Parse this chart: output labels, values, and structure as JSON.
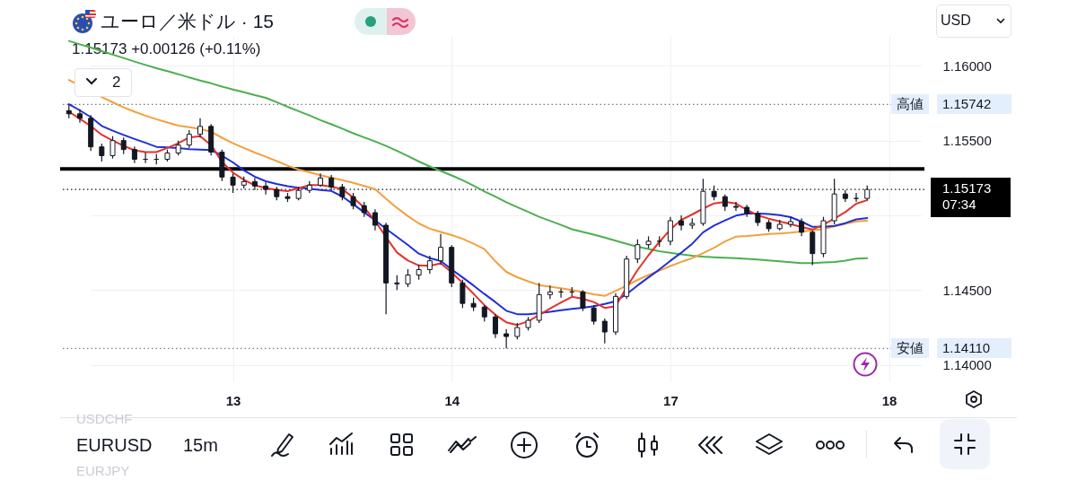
{
  "chart_data": {
    "type": "candlestick",
    "title": "ユーロ／米ドル · 15",
    "subtitle": "1.15173 +0.00126 (+0.11%)",
    "annotations": [
      "2",
      "USD",
      "EURUSD",
      "15m",
      "USDCHF",
      "EURJPY",
      "07:34",
      {
        "text": "高値",
        "y": 1.15742
      },
      {
        "text": "安値",
        "y": 1.1411
      }
    ],
    "color": "#131722",
    "grid": true,
    "categories": [
      null,
      null,
      null,
      null,
      null,
      null,
      null,
      null,
      null,
      null,
      null,
      null,
      null,
      null,
      null,
      "13",
      null,
      null,
      null,
      null,
      null,
      null,
      null,
      null,
      null,
      null,
      null,
      null,
      null,
      null,
      null,
      null,
      null,
      null,
      null,
      "14",
      null,
      null,
      null,
      null,
      null,
      null,
      null,
      null,
      null,
      null,
      null,
      null,
      null,
      null,
      null,
      null,
      null,
      null,
      null,
      "17",
      null,
      null,
      null,
      null,
      null,
      null,
      null,
      null,
      null,
      null,
      null,
      null,
      null,
      null,
      null,
      null,
      null,
      null,
      null,
      "18"
    ],
    "ylim": [
      1.1389,
      1.162
    ],
    "yticks": [
      {
        "value": 1.14,
        "label": "1.14000"
      },
      {
        "value": 1.145,
        "label": "1.14500"
      },
      {
        "value": 1.15,
        "label": null
      },
      {
        "value": 1.155,
        "label": "1.15500"
      },
      {
        "value": 1.16,
        "label": "1.16000"
      }
    ],
    "ohlc": [
      [
        1.157,
        1.15742,
        1.1565,
        1.15679
      ],
      [
        1.15679,
        1.1571,
        1.1562,
        1.15649
      ],
      [
        1.15649,
        1.1567,
        1.1543,
        1.15458
      ],
      [
        1.15458,
        1.1548,
        1.1536,
        1.15399
      ],
      [
        1.15399,
        1.1553,
        1.1538,
        1.155
      ],
      [
        1.155,
        1.1552,
        1.1541,
        1.1544
      ],
      [
        1.1544,
        1.1546,
        1.1535,
        1.15375
      ],
      [
        1.15375,
        1.1542,
        1.1535,
        1.15375
      ],
      [
        1.15375,
        1.1541,
        1.1534,
        1.15375
      ],
      [
        1.15375,
        1.1544,
        1.1536,
        1.15417
      ],
      [
        1.15417,
        1.155,
        1.154,
        1.1547
      ],
      [
        1.1547,
        1.1557,
        1.1545,
        1.15542
      ],
      [
        1.15542,
        1.15649,
        1.1552,
        1.15595
      ],
      [
        1.15595,
        1.1561,
        1.154,
        1.15423
      ],
      [
        1.15423,
        1.1544,
        1.1523,
        1.15256
      ],
      [
        1.15256,
        1.1528,
        1.1515,
        1.15202
      ],
      [
        1.15202,
        1.1526,
        1.1518,
        1.15226
      ],
      [
        1.15226,
        1.1525,
        1.1517,
        1.15196
      ],
      [
        1.15196,
        1.1522,
        1.1514,
        1.15173
      ],
      [
        1.15173,
        1.1519,
        1.151,
        1.15125
      ],
      [
        1.15125,
        1.1515,
        1.1509,
        1.15113
      ],
      [
        1.15113,
        1.1519,
        1.151,
        1.15167
      ],
      [
        1.15167,
        1.1523,
        1.1515,
        1.15202
      ],
      [
        1.15202,
        1.1528,
        1.1519,
        1.1525
      ],
      [
        1.1525,
        1.1527,
        1.1517,
        1.1519
      ],
      [
        1.1519,
        1.1521,
        1.151,
        1.15125
      ],
      [
        1.15125,
        1.1515,
        1.1504,
        1.15065
      ],
      [
        1.15065,
        1.1509,
        1.1499,
        1.15018
      ],
      [
        1.15018,
        1.1504,
        1.149,
        1.14934
      ],
      [
        1.14934,
        1.1495,
        1.14339,
        1.14548
      ],
      [
        1.14548,
        1.146,
        1.145,
        1.14542
      ],
      [
        1.14542,
        1.1464,
        1.1452,
        1.14601
      ],
      [
        1.14601,
        1.1467,
        1.1457,
        1.14637
      ],
      [
        1.14637,
        1.1473,
        1.1461,
        1.14696
      ],
      [
        1.14696,
        1.14875,
        1.1467,
        1.14786
      ],
      [
        1.14786,
        1.148,
        1.1452,
        1.14548
      ],
      [
        1.14548,
        1.1457,
        1.1438,
        1.14411
      ],
      [
        1.14411,
        1.1445,
        1.1436,
        1.14387
      ],
      [
        1.14387,
        1.144,
        1.1429,
        1.14321
      ],
      [
        1.14321,
        1.1434,
        1.1418,
        1.14208
      ],
      [
        1.14208,
        1.1424,
        1.1411,
        1.1419
      ],
      [
        1.1419,
        1.1428,
        1.1417,
        1.1425
      ],
      [
        1.1425,
        1.1432,
        1.1423,
        1.14298
      ],
      [
        1.14298,
        1.14548,
        1.1428,
        1.1447
      ],
      [
        1.1447,
        1.1453,
        1.1444,
        1.14488
      ],
      [
        1.14488,
        1.1451,
        1.1445,
        1.14488
      ],
      [
        1.14488,
        1.1452,
        1.1446,
        1.14488
      ],
      [
        1.14488,
        1.145,
        1.1436,
        1.14381
      ],
      [
        1.14381,
        1.144,
        1.1427,
        1.14292
      ],
      [
        1.14292,
        1.1431,
        1.14143,
        1.1422
      ],
      [
        1.1422,
        1.1448,
        1.142,
        1.14458
      ],
      [
        1.14458,
        1.1473,
        1.1444,
        1.14708
      ],
      [
        1.14708,
        1.1484,
        1.1468,
        1.14804
      ],
      [
        1.14804,
        1.1486,
        1.1478,
        1.14827
      ],
      [
        1.14827,
        1.1486,
        1.1479,
        1.14827
      ],
      [
        1.14827,
        1.1499,
        1.148,
        1.14964
      ],
      [
        1.14964,
        1.15,
        1.149,
        1.14934
      ],
      [
        1.14934,
        1.1498,
        1.1491,
        1.14946
      ],
      [
        1.14946,
        1.15244,
        1.1493,
        1.15161
      ],
      [
        1.15161,
        1.152,
        1.151,
        1.15125
      ],
      [
        1.15125,
        1.1514,
        1.1503,
        1.1506
      ],
      [
        1.1506,
        1.1509,
        1.1503,
        1.15054
      ],
      [
        1.15054,
        1.1507,
        1.1499,
        1.15012
      ],
      [
        1.15012,
        1.1503,
        1.1493,
        1.14952
      ],
      [
        1.14952,
        1.1497,
        1.1489,
        1.14911
      ],
      [
        1.14911,
        1.1497,
        1.149,
        1.1494
      ],
      [
        1.1494,
        1.1499,
        1.1492,
        1.14958
      ],
      [
        1.14958,
        1.1498,
        1.1486,
        1.14887
      ],
      [
        1.14887,
        1.149,
        1.14667,
        1.14744
      ],
      [
        1.14744,
        1.1499,
        1.1472,
        1.14964
      ],
      [
        1.14964,
        1.15244,
        1.1494,
        1.15143
      ],
      [
        1.15143,
        1.1517,
        1.1509,
        1.15113
      ],
      [
        1.15113,
        1.1515,
        1.1509,
        1.15113
      ],
      [
        1.15113,
        1.152,
        1.151,
        1.15173
      ],
      null,
      null
    ],
    "series": [
      {
        "type": "line",
        "color": "#4caf50",
        "values": [
          1.16166,
          1.16144,
          1.16122,
          1.16098,
          1.16075,
          1.16052,
          1.16028,
          1.16006,
          1.15984,
          1.15964,
          1.15944,
          1.15922,
          1.15902,
          1.15883,
          1.15861,
          1.15842,
          1.15824,
          1.15804,
          1.15786,
          1.15757,
          1.15726,
          1.15697,
          1.15668,
          1.15637,
          1.15609,
          1.1558,
          1.15549,
          1.15521,
          1.15494,
          1.15464,
          1.15431,
          1.15397,
          1.1536,
          1.15327,
          1.15297,
          1.15267,
          1.15235,
          1.15199,
          1.1516,
          1.15125,
          1.15088,
          1.15055,
          1.15023,
          1.1499,
          1.14963,
          1.14936,
          1.14907,
          1.14889,
          1.14871,
          1.14851,
          1.14831,
          1.1481,
          1.1479,
          1.14775,
          1.1476,
          1.14749,
          1.14739,
          1.1473,
          1.14724,
          1.1472,
          1.14717,
          1.14713,
          1.14709,
          1.14704,
          1.14698,
          1.14693,
          1.14687,
          1.14681,
          1.14681,
          1.14685,
          1.14688,
          1.14697,
          1.1471,
          1.14714,
          null,
          null
        ]
      },
      {
        "type": "line",
        "color": "#f2a03d",
        "values": [
          1.15905,
          null,
          null,
          1.15791,
          1.15756,
          1.15722,
          1.15693,
          1.15667,
          1.15643,
          1.15621,
          1.156,
          1.15589,
          1.15578,
          1.15559,
          1.15519,
          1.15482,
          1.15451,
          1.1542,
          1.15392,
          1.15363,
          1.15332,
          1.15306,
          1.15288,
          1.15269,
          1.15252,
          1.15235,
          1.15217,
          1.15196,
          1.15175,
          1.15111,
          1.1505,
          1.14995,
          1.14946,
          1.14911,
          1.14889,
          1.14868,
          1.14843,
          1.1481,
          1.14774,
          1.14692,
          1.14622,
          1.14586,
          1.14559,
          1.14534,
          1.14523,
          1.14513,
          1.14501,
          1.14487,
          1.14472,
          1.14461,
          1.14495,
          1.1453,
          1.14568,
          1.14601,
          1.1463,
          1.14661,
          1.14689,
          1.14714,
          1.14747,
          1.14783,
          1.14825,
          1.14858,
          1.14862,
          1.14868,
          1.14875,
          1.14879,
          1.14884,
          1.14892,
          1.14899,
          1.14908,
          1.14927,
          1.14943,
          1.14959,
          1.14964,
          null,
          null
        ]
      },
      {
        "type": "line",
        "color": "#1f2fd8",
        "values": [
          1.15743,
          1.15702,
          1.15657,
          1.15598,
          1.15566,
          1.15538,
          1.15511,
          1.15485,
          1.15458,
          1.15454,
          1.1545,
          1.15442,
          1.1544,
          1.15437,
          1.15399,
          1.15354,
          1.15301,
          1.15259,
          1.15228,
          1.1521,
          1.15195,
          1.15185,
          1.15178,
          1.1517,
          1.15163,
          1.15126,
          1.15074,
          1.1502,
          1.14967,
          1.1491,
          1.14856,
          1.14802,
          1.14744,
          1.14714,
          1.14696,
          1.14638,
          1.14585,
          1.14531,
          1.14474,
          1.1442,
          1.14362,
          1.14339,
          1.14339,
          1.14346,
          1.14355,
          1.14365,
          1.14374,
          1.14382,
          1.14393,
          1.14408,
          1.14426,
          1.14474,
          1.14531,
          1.14585,
          1.14638,
          1.14696,
          1.1475,
          1.1481,
          1.14887,
          1.14932,
          1.14966,
          1.14998,
          1.15012,
          1.15012,
          1.15009,
          1.15002,
          1.14988,
          1.14958,
          1.14923,
          1.14923,
          1.1493,
          1.14948,
          1.14973,
          1.14982,
          null,
          null
        ]
      },
      {
        "type": "line",
        "color": "#e5322d",
        "values": [
          1.15693,
          1.15646,
          1.15597,
          1.15539,
          1.155,
          1.15465,
          1.15435,
          1.15423,
          1.15423,
          1.15451,
          1.15482,
          1.15521,
          1.1553,
          1.1547,
          1.15357,
          1.15286,
          1.15238,
          1.15201,
          1.15183,
          1.1517,
          1.15162,
          1.15182,
          1.15202,
          1.15202,
          1.15192,
          1.15175,
          1.15119,
          1.15053,
          1.14964,
          1.14854,
          1.14752,
          1.14698,
          1.14665,
          1.14662,
          1.14679,
          1.14619,
          1.14548,
          1.14476,
          1.14399,
          1.14335,
          1.14285,
          1.14267,
          1.14291,
          1.14334,
          1.14377,
          1.14417,
          1.14455,
          1.14442,
          1.1442,
          1.14381,
          1.14393,
          1.14518,
          1.14634,
          1.14733,
          1.14823,
          1.14905,
          1.1497,
          1.15006,
          1.15045,
          1.1508,
          1.1509,
          1.15079,
          1.15036,
          1.15,
          1.14978,
          1.1496,
          1.14942,
          1.14922,
          1.14905,
          1.14938,
          1.14978,
          1.15022,
          1.15078,
          1.15101,
          null,
          null
        ]
      }
    ],
    "ref_lines": [
      {
        "axis": "y",
        "value": 1.1531,
        "color": "#000000",
        "line_style": "solid"
      },
      {
        "axis": "y",
        "value": 1.15742,
        "label": "1.15742",
        "color": "#787b86",
        "line_style": "dotted"
      },
      {
        "axis": "y",
        "value": 1.1411,
        "label": "1.14110",
        "color": "#787b86",
        "line_style": "dotted"
      },
      {
        "axis": "y",
        "value": 1.15173,
        "label": "1.15173",
        "color": "#131722",
        "line_style": "dotted"
      }
    ]
  }
}
